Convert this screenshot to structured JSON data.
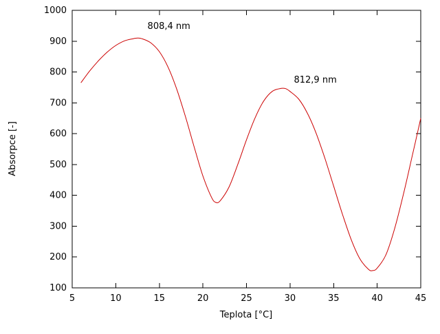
{
  "chart_data": {
    "type": "line",
    "title": "",
    "xlabel": "Teplota [°C]",
    "ylabel": "Absorpce [-]",
    "xlim": [
      5,
      45
    ],
    "ylim": [
      100,
      1000
    ],
    "xticks": [
      5,
      10,
      15,
      20,
      25,
      30,
      35,
      40,
      45
    ],
    "yticks": [
      100,
      200,
      300,
      400,
      500,
      600,
      700,
      800,
      900,
      1000
    ],
    "grid": false,
    "legend_position": "none",
    "line_color": "#cc0000",
    "series": [
      {
        "name": "absorpce",
        "points": [
          [
            6,
            765
          ],
          [
            7,
            803
          ],
          [
            8,
            836
          ],
          [
            9,
            864
          ],
          [
            10,
            886
          ],
          [
            11,
            901
          ],
          [
            12,
            908
          ],
          [
            12.5,
            910
          ],
          [
            13,
            908
          ],
          [
            14,
            895
          ],
          [
            15,
            866
          ],
          [
            16,
            816
          ],
          [
            17,
            744
          ],
          [
            18,
            655
          ],
          [
            19,
            557
          ],
          [
            20,
            463
          ],
          [
            21,
            393
          ],
          [
            21.5,
            377
          ],
          [
            22,
            383
          ],
          [
            23,
            427
          ],
          [
            24,
            500
          ],
          [
            25,
            580
          ],
          [
            26,
            652
          ],
          [
            27,
            707
          ],
          [
            28,
            738
          ],
          [
            29,
            747
          ],
          [
            29.5,
            746
          ],
          [
            30,
            737
          ],
          [
            31,
            712
          ],
          [
            32,
            666
          ],
          [
            33,
            601
          ],
          [
            34,
            520
          ],
          [
            35,
            430
          ],
          [
            36,
            340
          ],
          [
            37,
            258
          ],
          [
            38,
            195
          ],
          [
            39,
            160
          ],
          [
            39.5,
            156
          ],
          [
            40,
            164
          ],
          [
            41,
            207
          ],
          [
            42,
            292
          ],
          [
            43,
            402
          ],
          [
            44,
            525
          ],
          [
            45,
            650
          ]
        ]
      }
    ],
    "annotations": [
      {
        "text": "808,4 nm",
        "x": 16.1,
        "y": 940
      },
      {
        "text": "812,9 nm",
        "x": 32.9,
        "y": 765
      }
    ]
  }
}
